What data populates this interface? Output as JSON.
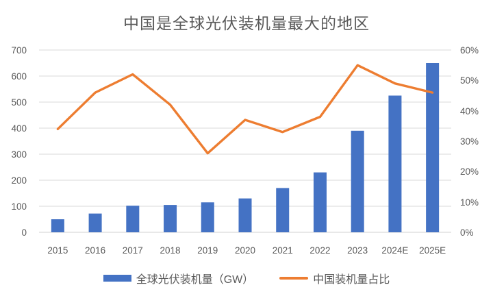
{
  "chart_data": {
    "type": "bar+line combo",
    "title": "中国是全球光伏装机量最大的地区",
    "categories": [
      "2015",
      "2016",
      "2017",
      "2018",
      "2019",
      "2020",
      "2021",
      "2022",
      "2023",
      "2024E",
      "2025E"
    ],
    "series": [
      {
        "name": "全球光伏装机量（GW）",
        "type": "bar",
        "axis": "left",
        "color": "#4472C4",
        "values": [
          50,
          72,
          102,
          105,
          115,
          130,
          170,
          230,
          390,
          525,
          650
        ]
      },
      {
        "name": "中国装机量占比",
        "type": "line",
        "axis": "right",
        "color": "#ED7D31",
        "values": [
          34,
          46,
          52,
          42,
          26,
          37,
          33,
          38,
          55,
          49,
          46
        ],
        "unit": "%"
      }
    ],
    "left_axis": {
      "min": 0,
      "max": 700,
      "step": 100,
      "tick_labels": [
        "0",
        "100",
        "200",
        "300",
        "400",
        "500",
        "600",
        "700"
      ]
    },
    "right_axis": {
      "min": 0,
      "max": 60,
      "step": 10,
      "tick_labels": [
        "0%",
        "10%",
        "20%",
        "30%",
        "40%",
        "50%",
        "60%"
      ]
    },
    "grid": true,
    "legend_position": "bottom",
    "colors": {
      "bar": "#4472C4",
      "line": "#ED7D31",
      "gridline": "#D9D9D9",
      "baseline": "#D2D2D2",
      "text": "#595959",
      "background": "#FFFFFF"
    }
  }
}
